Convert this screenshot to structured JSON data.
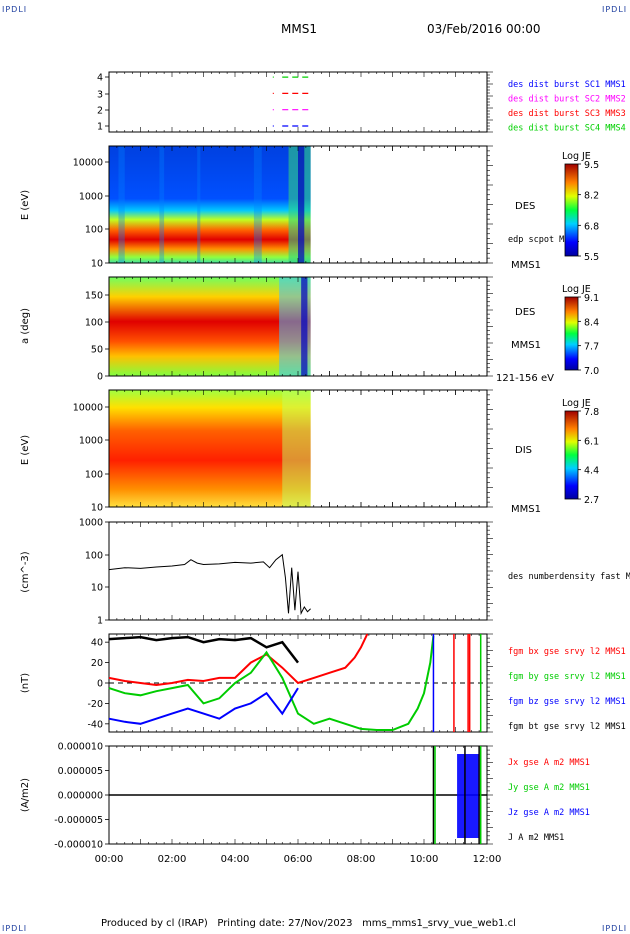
{
  "header": {
    "corner_tl": "IPDLI",
    "corner_tr": "IPDLI",
    "corner_bl": "IPDLI",
    "corner_br": "IPDLI",
    "mission": "MMS1",
    "date": "03/Feb/2016 00:00"
  },
  "footer": {
    "produced_by": "Produced by cl (IRAP)",
    "printing_date": "Printing date: 27/Nov/2023",
    "filename": "mms_mms1_srvy_vue_web1.cl"
  },
  "time_axis": {
    "ticks": [
      "00:00",
      "02:00",
      "04:00",
      "06:00",
      "08:00",
      "10:00",
      "12:00"
    ],
    "range_hours": [
      0,
      12
    ]
  },
  "colors": {
    "mms1": "#0000ff",
    "mms2": "#ff00ff",
    "mms3": "#ff0000",
    "mms4": "#00d000",
    "bx": "#ff0000",
    "by": "#00cc00",
    "bz": "#0000ff",
    "bt": "#000000"
  },
  "chart_data": [
    {
      "type": "line",
      "panel": "burst-availability",
      "y_ticks": [
        "4",
        "3",
        "2",
        "1"
      ],
      "series": [
        {
          "name": "des dist burst SC1 MMS1",
          "y": 1,
          "segments": [
            [
              5.2,
              5.2
            ],
            [
              5.5,
              6.4
            ]
          ]
        },
        {
          "name": "des dist burst SC2 MMS2",
          "y": 2,
          "segments": [
            [
              5.2,
              5.2
            ],
            [
              5.5,
              6.4
            ]
          ]
        },
        {
          "name": "des dist burst SC3 MMS3",
          "y": 3,
          "segments": [
            [
              5.2,
              5.2
            ],
            [
              5.5,
              6.4
            ]
          ]
        },
        {
          "name": "des dist burst SC4 MMS4",
          "y": 4,
          "segments": [
            [
              5.2,
              5.2
            ],
            [
              5.5,
              6.4
            ]
          ]
        }
      ]
    },
    {
      "type": "heatmap",
      "panel": "des-energy",
      "ylabel": "E (eV)",
      "yscale": "log",
      "y_ticks": [
        "10000",
        "1000",
        "100",
        "10"
      ],
      "label": "DES",
      "sublabel": "edp scpot MMS1",
      "station": "MMS1",
      "colorbar": {
        "title": "Log JE",
        "ticks": [
          "9.5",
          "8.2",
          "6.8",
          "5.5"
        ],
        "range": [
          5.5,
          9.5
        ]
      },
      "data_end_hours": 6.4
    },
    {
      "type": "heatmap",
      "panel": "des-pitch-angle",
      "ylabel": "a (deg)",
      "y_ticks": [
        "150",
        "100",
        "50",
        "0"
      ],
      "ylim": [
        0,
        180
      ],
      "label": "DES",
      "station": "MMS1",
      "energy_range": "121-156 eV",
      "colorbar": {
        "title": "Log JE",
        "ticks": [
          "9.1",
          "8.4",
          "7.7",
          "7.0"
        ],
        "range": [
          7.0,
          9.1
        ]
      },
      "data_end_hours": 6.4
    },
    {
      "type": "heatmap",
      "panel": "dis-energy",
      "ylabel": "E (eV)",
      "yscale": "log",
      "y_ticks": [
        "10000",
        "1000",
        "100",
        "10"
      ],
      "label": "DIS",
      "station": "MMS1",
      "colorbar": {
        "title": "Log JE",
        "ticks": [
          "7.8",
          "6.1",
          "4.4",
          "2.7"
        ],
        "range": [
          2.7,
          7.8
        ]
      },
      "data_end_hours": 6.4
    },
    {
      "type": "line",
      "panel": "density",
      "ylabel": "(cm^-3)",
      "yscale": "log",
      "y_ticks": [
        "1000",
        "100",
        "10",
        "1"
      ],
      "ylim": [
        1,
        1000
      ],
      "series": [
        {
          "name": "des numberdensity fast M",
          "x": [
            0,
            0.5,
            1.0,
            1.5,
            2.0,
            2.4,
            2.6,
            2.8,
            3.0,
            3.5,
            4.0,
            4.5,
            4.9,
            5.1,
            5.3,
            5.5,
            5.6,
            5.7,
            5.8,
            5.9,
            6.0,
            6.1,
            6.2,
            6.3,
            6.4
          ],
          "y": [
            35,
            40,
            38,
            42,
            45,
            50,
            70,
            55,
            50,
            52,
            58,
            55,
            60,
            40,
            70,
            100,
            20,
            1.6,
            40,
            2,
            30,
            1.6,
            2.5,
            1.8,
            2.2
          ]
        }
      ]
    },
    {
      "type": "line",
      "panel": "magnetic-field",
      "ylabel": "(nT)",
      "y_ticks": [
        "40",
        "20",
        "0",
        "-20",
        "-40"
      ],
      "ylim": [
        -48,
        48
      ],
      "series": [
        {
          "name": "fgm bx gse srvy l2 MMS1",
          "x": [
            0,
            0.5,
            1.0,
            1.5,
            2.0,
            2.5,
            3.0,
            3.5,
            4.0,
            4.5,
            5.0,
            5.5,
            6.0,
            6.5,
            7.0,
            7.5,
            7.8,
            8.0,
            8.2
          ],
          "y": [
            5,
            2,
            0,
            -2,
            0,
            3,
            2,
            5,
            5,
            20,
            28,
            15,
            0,
            5,
            10,
            15,
            25,
            35,
            48
          ]
        },
        {
          "name": "fgm by gse srvy l2 MMS1",
          "x": [
            0,
            0.5,
            1.0,
            1.5,
            2.0,
            2.5,
            3.0,
            3.5,
            4.0,
            4.5,
            5.0,
            5.5,
            6.0,
            6.5,
            7.0,
            7.5,
            8.0,
            8.5,
            9.0,
            9.5,
            9.8,
            10.0,
            10.2,
            10.3
          ],
          "y": [
            -5,
            -10,
            -12,
            -8,
            -5,
            -2,
            -20,
            -15,
            0,
            10,
            30,
            5,
            -30,
            -40,
            -35,
            -40,
            -45,
            -46,
            -46,
            -40,
            -25,
            -10,
            20,
            46
          ]
        },
        {
          "name": "fgm bz gse srvy l2 MMS1",
          "x": [
            0,
            0.5,
            1.0,
            1.5,
            2.0,
            2.5,
            3.0,
            3.5,
            4.0,
            4.5,
            5.0,
            5.5,
            6.0
          ],
          "y": [
            -35,
            -38,
            -40,
            -35,
            -30,
            -25,
            -30,
            -35,
            -25,
            -20,
            -10,
            -30,
            -5
          ]
        },
        {
          "name": "fgm bt gse srvy l2 MMS1",
          "x": [
            0,
            0.5,
            1.0,
            1.5,
            2.0,
            2.5,
            3.0,
            3.5,
            4.0,
            4.5,
            5.0,
            5.5,
            6.0
          ],
          "y": [
            43,
            44,
            45,
            42,
            44,
            45,
            40,
            43,
            42,
            44,
            35,
            40,
            20
          ]
        }
      ],
      "reference_line": 0
    },
    {
      "type": "line",
      "panel": "current-density",
      "ylabel": "(A/m2)",
      "y_ticks": [
        "0.000010",
        "0.000005",
        "0.000000",
        "-0.000005",
        "-0.000010"
      ],
      "ylim": [
        -1e-05,
        1e-05
      ],
      "series": [
        {
          "name": "Jx gse A m2 MMS1",
          "x": [
            0,
            12
          ],
          "y": [
            0,
            0
          ]
        },
        {
          "name": "Jy gse A m2 MMS1",
          "x": [
            0,
            12
          ],
          "y": [
            0,
            0
          ]
        },
        {
          "name": "Jz gse A m2 MMS1",
          "x": [
            0,
            12
          ],
          "y": [
            0,
            0
          ]
        },
        {
          "name": "J A m2 MMS1",
          "x": [
            0,
            12
          ],
          "y": [
            0,
            0
          ]
        }
      ]
    }
  ]
}
